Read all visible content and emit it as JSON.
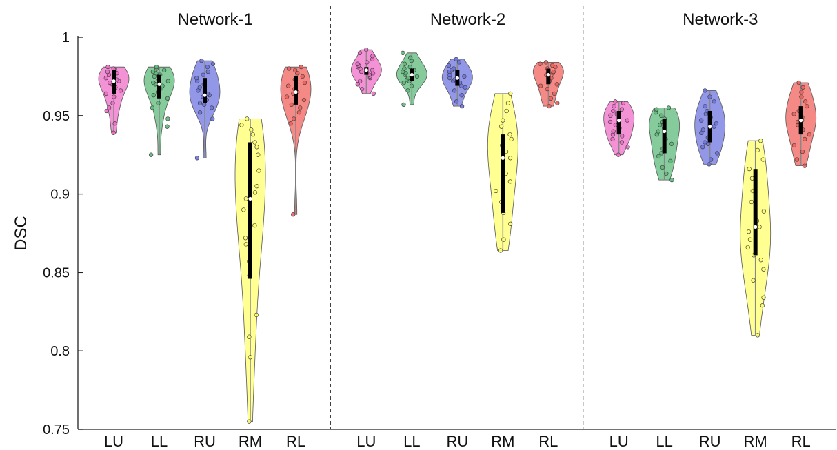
{
  "chart_data": {
    "type": "violin",
    "ylabel": "DSC",
    "ylim": [
      0.75,
      1.0
    ],
    "yticks": [
      0.75,
      0.8,
      0.85,
      0.9,
      0.95,
      1.0
    ],
    "ytick_labels": [
      "0.75",
      "0.8",
      "0.85",
      "0.9",
      "0.95",
      "1"
    ],
    "categories": [
      "LU",
      "LL",
      "RU",
      "RM",
      "RL"
    ],
    "category_colors": {
      "LU": "#f06ec8",
      "LL": "#5cb97a",
      "RU": "#6e74e0",
      "RM": "#ffff6e",
      "RL": "#f0625c"
    },
    "panels": [
      {
        "title": "Network-1",
        "violins": [
          {
            "category": "LU",
            "min": 0.939,
            "max": 0.981,
            "median": 0.972,
            "q1": 0.964,
            "q3": 0.979,
            "points": [
              0.939,
              0.945,
              0.953,
              0.955,
              0.958,
              0.962,
              0.964,
              0.966,
              0.968,
              0.97,
              0.971,
              0.972,
              0.973,
              0.974,
              0.975,
              0.976,
              0.977,
              0.978,
              0.979,
              0.98,
              0.981
            ]
          },
          {
            "category": "LL",
            "min": 0.925,
            "max": 0.981,
            "median": 0.97,
            "q1": 0.961,
            "q3": 0.976,
            "points": [
              0.925,
              0.943,
              0.948,
              0.955,
              0.958,
              0.961,
              0.963,
              0.965,
              0.967,
              0.969,
              0.97,
              0.971,
              0.972,
              0.973,
              0.975,
              0.976,
              0.977,
              0.978,
              0.979,
              0.98,
              0.981
            ]
          },
          {
            "category": "RU",
            "min": 0.923,
            "max": 0.985,
            "median": 0.963,
            "q1": 0.958,
            "q3": 0.974,
            "points": [
              0.923,
              0.948,
              0.952,
              0.955,
              0.957,
              0.958,
              0.96,
              0.962,
              0.963,
              0.964,
              0.966,
              0.968,
              0.97,
              0.972,
              0.974,
              0.976,
              0.978,
              0.981,
              0.983,
              0.985
            ]
          },
          {
            "category": "RM",
            "min": 0.755,
            "max": 0.948,
            "median": 0.897,
            "q1": 0.846,
            "q3": 0.933,
            "points": [
              0.755,
              0.796,
              0.809,
              0.823,
              0.848,
              0.857,
              0.868,
              0.872,
              0.88,
              0.89,
              0.897,
              0.901,
              0.905,
              0.915,
              0.925,
              0.93,
              0.933,
              0.938,
              0.941,
              0.944,
              0.948
            ]
          },
          {
            "category": "RL",
            "min": 0.887,
            "max": 0.981,
            "median": 0.965,
            "q1": 0.957,
            "q3": 0.975,
            "points": [
              0.887,
              0.945,
              0.948,
              0.952,
              0.955,
              0.957,
              0.96,
              0.962,
              0.964,
              0.965,
              0.967,
              0.969,
              0.971,
              0.973,
              0.975,
              0.977,
              0.979,
              0.98,
              0.981
            ]
          }
        ]
      },
      {
        "title": "Network-2",
        "violins": [
          {
            "category": "LU",
            "min": 0.964,
            "max": 0.992,
            "median": 0.979,
            "q1": 0.976,
            "q3": 0.981,
            "points": [
              0.964,
              0.967,
              0.97,
              0.972,
              0.974,
              0.975,
              0.976,
              0.977,
              0.978,
              0.979,
              0.98,
              0.981,
              0.982,
              0.983,
              0.984,
              0.986,
              0.988,
              0.99,
              0.992
            ]
          },
          {
            "category": "LL",
            "min": 0.957,
            "max": 0.99,
            "median": 0.976,
            "q1": 0.972,
            "q3": 0.98,
            "points": [
              0.957,
              0.966,
              0.969,
              0.971,
              0.972,
              0.973,
              0.974,
              0.975,
              0.976,
              0.977,
              0.978,
              0.979,
              0.98,
              0.981,
              0.983,
              0.985,
              0.987,
              0.99
            ]
          },
          {
            "category": "RU",
            "min": 0.956,
            "max": 0.986,
            "median": 0.974,
            "q1": 0.969,
            "q3": 0.979,
            "points": [
              0.956,
              0.959,
              0.963,
              0.966,
              0.968,
              0.969,
              0.971,
              0.972,
              0.973,
              0.974,
              0.975,
              0.976,
              0.978,
              0.979,
              0.98,
              0.982,
              0.984,
              0.986
            ]
          },
          {
            "category": "RM",
            "min": 0.864,
            "max": 0.964,
            "median": 0.923,
            "q1": 0.888,
            "q3": 0.938,
            "points": [
              0.864,
              0.871,
              0.881,
              0.888,
              0.895,
              0.902,
              0.908,
              0.913,
              0.918,
              0.923,
              0.927,
              0.931,
              0.935,
              0.938,
              0.943,
              0.947,
              0.953,
              0.958,
              0.964
            ]
          },
          {
            "category": "RL",
            "min": 0.956,
            "max": 0.984,
            "median": 0.976,
            "q1": 0.97,
            "q3": 0.98,
            "points": [
              0.956,
              0.958,
              0.961,
              0.964,
              0.967,
              0.969,
              0.97,
              0.972,
              0.974,
              0.976,
              0.977,
              0.978,
              0.979,
              0.98,
              0.981,
              0.982,
              0.983,
              0.984
            ]
          }
        ]
      },
      {
        "title": "Network-3",
        "violins": [
          {
            "category": "LU",
            "min": 0.925,
            "max": 0.959,
            "median": 0.947,
            "q1": 0.938,
            "q3": 0.953,
            "points": [
              0.925,
              0.93,
              0.933,
              0.935,
              0.937,
              0.938,
              0.94,
              0.942,
              0.944,
              0.946,
              0.947,
              0.948,
              0.95,
              0.951,
              0.953,
              0.954,
              0.956,
              0.958,
              0.959
            ]
          },
          {
            "category": "LL",
            "min": 0.909,
            "max": 0.955,
            "median": 0.94,
            "q1": 0.926,
            "q3": 0.948,
            "points": [
              0.909,
              0.913,
              0.917,
              0.921,
              0.924,
              0.926,
              0.929,
              0.932,
              0.935,
              0.938,
              0.94,
              0.942,
              0.944,
              0.946,
              0.948,
              0.95,
              0.952,
              0.954,
              0.955
            ]
          },
          {
            "category": "RU",
            "min": 0.919,
            "max": 0.966,
            "median": 0.943,
            "q1": 0.933,
            "q3": 0.953,
            "points": [
              0.919,
              0.922,
              0.926,
              0.93,
              0.932,
              0.933,
              0.936,
              0.939,
              0.941,
              0.943,
              0.945,
              0.947,
              0.949,
              0.951,
              0.953,
              0.956,
              0.959,
              0.962,
              0.966
            ]
          },
          {
            "category": "RM",
            "min": 0.81,
            "max": 0.934,
            "median": 0.879,
            "q1": 0.861,
            "q3": 0.916,
            "points": [
              0.81,
              0.829,
              0.834,
              0.845,
              0.852,
              0.858,
              0.861,
              0.866,
              0.871,
              0.876,
              0.879,
              0.883,
              0.889,
              0.895,
              0.902,
              0.91,
              0.916,
              0.922,
              0.928,
              0.934
            ]
          },
          {
            "category": "RL",
            "min": 0.918,
            "max": 0.971,
            "median": 0.947,
            "q1": 0.938,
            "q3": 0.956,
            "points": [
              0.918,
              0.922,
              0.927,
              0.931,
              0.935,
              0.938,
              0.941,
              0.944,
              0.946,
              0.947,
              0.949,
              0.951,
              0.953,
              0.956,
              0.959,
              0.962,
              0.965,
              0.968,
              0.971
            ]
          }
        ]
      }
    ]
  }
}
